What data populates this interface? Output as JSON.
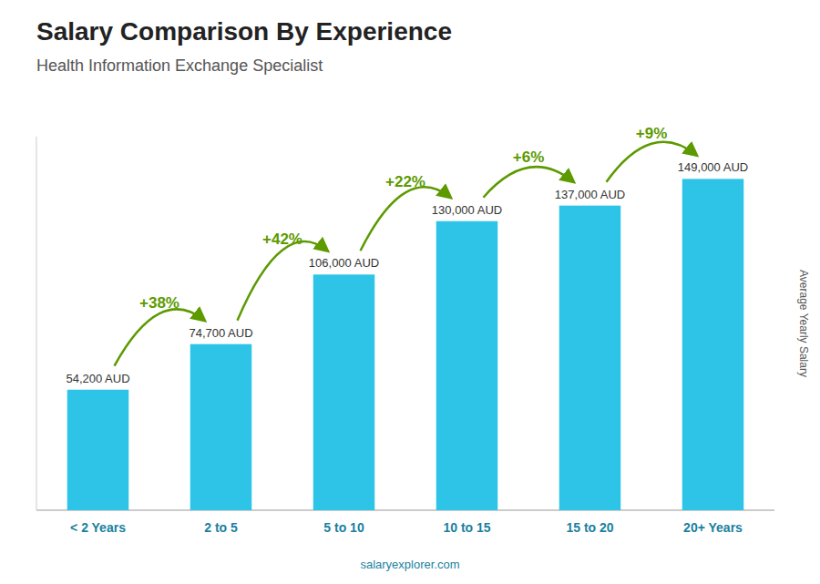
{
  "chart_data": {
    "type": "bar",
    "title": "Salary Comparison By Experience",
    "subtitle": "Health Information Exchange Specialist",
    "categories": [
      "< 2 Years",
      "2 to 5",
      "5 to 10",
      "10 to 15",
      "15 to 20",
      "20+ Years"
    ],
    "values": [
      54200,
      74700,
      106000,
      130000,
      137000,
      149000
    ],
    "value_labels": [
      "54,200 AUD",
      "74,700 AUD",
      "106,000 AUD",
      "130,000 AUD",
      "137,000 AUD",
      "149,000 AUD"
    ],
    "data_labels": true,
    "annotations": [
      "+38%",
      "+42%",
      "+22%",
      "+6%",
      "+9%"
    ],
    "color": "#2ec4e8",
    "ylabel": "Average Yearly Salary",
    "ylim": [
      0,
      168000
    ],
    "tick_labels": "x",
    "footer": "salaryexplorer.com"
  }
}
